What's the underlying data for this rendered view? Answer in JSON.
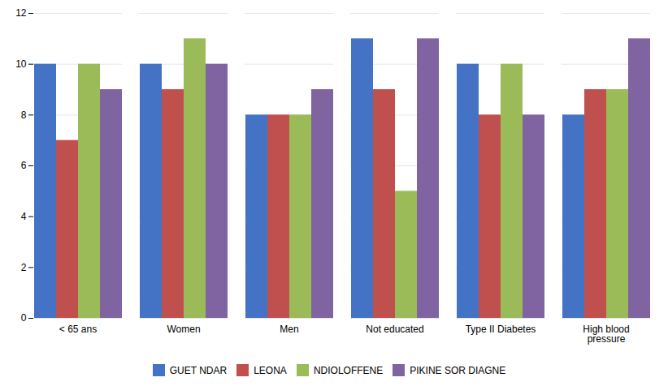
{
  "chart_data": {
    "type": "bar",
    "categories": [
      "< 65 ans",
      "Women",
      "Men",
      "Not educated",
      "Type II Diabetes",
      "High blood\npressure"
    ],
    "series": [
      {
        "name": "GUET NDAR",
        "color": "#4472C4",
        "values": [
          10,
          10,
          8,
          11,
          10,
          8
        ]
      },
      {
        "name": "LEONA",
        "color": "#C0504D",
        "values": [
          7,
          9,
          8,
          9,
          8,
          9
        ]
      },
      {
        "name": "NDIOLOFFENE",
        "color": "#9BBB59",
        "values": [
          10,
          11,
          8,
          5,
          10,
          9
        ]
      },
      {
        "name": "PIKINE SOR DIAGNE",
        "color": "#8064A2",
        "values": [
          9,
          10,
          9,
          11,
          8,
          11
        ]
      }
    ],
    "ylim": [
      0,
      12
    ],
    "yticks": [
      0,
      2,
      4,
      6,
      8,
      10,
      12
    ],
    "grid": true,
    "legend": "bottom"
  }
}
